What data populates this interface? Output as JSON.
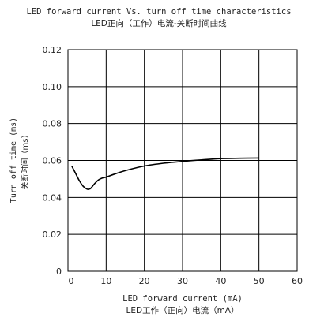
{
  "chart_data": {
    "type": "line",
    "title": "LED forward current Vs. turn off time characteristics",
    "subtitle": "LED正向（工作）电流-关断时间曲线",
    "xlabel": "LED forward current (mA)",
    "xlabel_cn": "LED工作（正向）电流（mA）",
    "ylabel": "Turn off time (ms)",
    "ylabel_cn": "关断时间（ms）",
    "xlim": [
      0,
      60
    ],
    "ylim": [
      0,
      0.12
    ],
    "xticks": [
      "0",
      "10",
      "20",
      "30",
      "40",
      "50",
      "60"
    ],
    "yticks": [
      "0",
      "0.02",
      "0.04",
      "0.06",
      "0.08",
      "0.10",
      "0.12"
    ],
    "grid": true,
    "series": [
      {
        "x": [
          1,
          2,
          3,
          4,
          5,
          5.5,
          6,
          7,
          8,
          9,
          10,
          12,
          15,
          20,
          25,
          30,
          35,
          40,
          45,
          50
        ],
        "y": [
          0.057,
          0.053,
          0.049,
          0.046,
          0.0445,
          0.0445,
          0.045,
          0.0475,
          0.0495,
          0.0505,
          0.051,
          0.0525,
          0.0545,
          0.057,
          0.0585,
          0.0595,
          0.0603,
          0.061,
          0.0612,
          0.0613
        ]
      }
    ]
  },
  "colors": {
    "axis": "#000000",
    "grid": "#000000",
    "line": "#000000",
    "text": "#222222"
  }
}
